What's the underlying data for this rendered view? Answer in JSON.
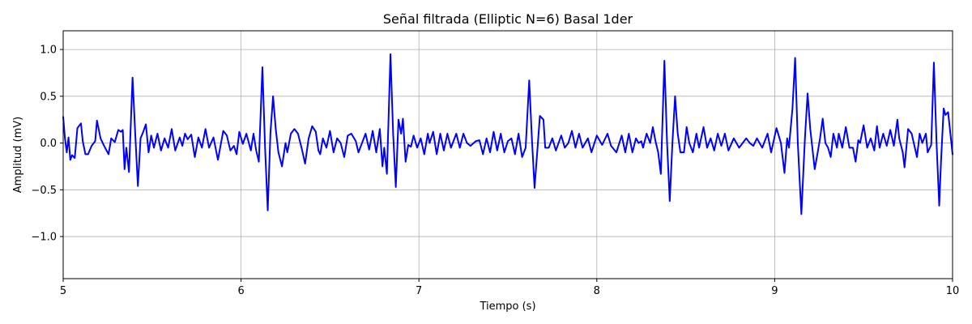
{
  "chart_data": {
    "type": "line",
    "title": "Señal filtrada (Elliptic N=6) Basal 1der",
    "xlabel": "Tiempo (s)",
    "ylabel": "Amplitud (mV)",
    "xlim": [
      5,
      10
    ],
    "ylim": [
      -1.45,
      1.2
    ],
    "xticks": [
      5,
      6,
      7,
      8,
      9,
      10
    ],
    "xtick_labels": [
      "5",
      "6",
      "7",
      "8",
      "9",
      "10"
    ],
    "yticks": [
      -1.0,
      -0.5,
      0.0,
      0.5,
      1.0
    ],
    "ytick_labels": [
      "−1.0",
      "−0.5",
      "0.0",
      "0.5",
      "1.0"
    ],
    "grid": true,
    "line_color": "#0000ff",
    "series": [
      {
        "values": [
          [
            5.0,
            0.28
          ],
          [
            5.01,
            0.05
          ],
          [
            5.02,
            -0.1
          ],
          [
            5.03,
            0.06
          ],
          [
            5.04,
            -0.18
          ],
          [
            5.05,
            -0.13
          ],
          [
            5.065,
            -0.16
          ],
          [
            5.08,
            0.16
          ],
          [
            5.1,
            0.21
          ],
          [
            5.11,
            0.02
          ],
          [
            5.125,
            -0.12
          ],
          [
            5.14,
            -0.12
          ],
          [
            5.16,
            -0.03
          ],
          [
            5.18,
            0.02
          ],
          [
            5.19,
            0.24
          ],
          [
            5.21,
            0.05
          ],
          [
            5.23,
            -0.03
          ],
          [
            5.255,
            -0.12
          ],
          [
            5.27,
            0.05
          ],
          [
            5.29,
            0.01
          ],
          [
            5.31,
            0.14
          ],
          [
            5.325,
            0.12
          ],
          [
            5.335,
            0.14
          ],
          [
            5.345,
            -0.28
          ],
          [
            5.355,
            -0.05
          ],
          [
            5.37,
            -0.31
          ],
          [
            5.39,
            0.7
          ],
          [
            5.405,
            0.1
          ],
          [
            5.42,
            -0.46
          ],
          [
            5.435,
            0.05
          ],
          [
            5.45,
            0.12
          ],
          [
            5.465,
            0.2
          ],
          [
            5.48,
            -0.1
          ],
          [
            5.495,
            0.08
          ],
          [
            5.51,
            -0.05
          ],
          [
            5.53,
            0.1
          ],
          [
            5.55,
            -0.08
          ],
          [
            5.57,
            0.05
          ],
          [
            5.59,
            -0.05
          ],
          [
            5.61,
            0.15
          ],
          [
            5.63,
            -0.08
          ],
          [
            5.655,
            0.06
          ],
          [
            5.67,
            -0.03
          ],
          [
            5.685,
            0.1
          ],
          [
            5.7,
            0.04
          ],
          [
            5.72,
            0.09
          ],
          [
            5.74,
            -0.15
          ],
          [
            5.76,
            0.06
          ],
          [
            5.78,
            -0.05
          ],
          [
            5.8,
            0.15
          ],
          [
            5.82,
            -0.05
          ],
          [
            5.845,
            0.06
          ],
          [
            5.87,
            -0.18
          ],
          [
            5.9,
            0.13
          ],
          [
            5.92,
            0.08
          ],
          [
            5.94,
            -0.08
          ],
          [
            5.96,
            -0.03
          ],
          [
            5.975,
            -0.12
          ],
          [
            5.99,
            0.12
          ],
          [
            6.01,
            -0.01
          ],
          [
            6.03,
            0.1
          ],
          [
            6.055,
            -0.08
          ],
          [
            6.07,
            0.1
          ],
          [
            6.085,
            -0.08
          ],
          [
            6.1,
            -0.2
          ],
          [
            6.12,
            0.81
          ],
          [
            6.135,
            -0.05
          ],
          [
            6.15,
            -0.72
          ],
          [
            6.165,
            0.1
          ],
          [
            6.18,
            0.5
          ],
          [
            6.195,
            0.15
          ],
          [
            6.21,
            -0.1
          ],
          [
            6.23,
            -0.25
          ],
          [
            6.25,
            0.0
          ],
          [
            6.26,
            -0.1
          ],
          [
            6.28,
            0.1
          ],
          [
            6.3,
            0.15
          ],
          [
            6.32,
            0.1
          ],
          [
            6.34,
            -0.05
          ],
          [
            6.36,
            -0.22
          ],
          [
            6.38,
            0.05
          ],
          [
            6.4,
            0.18
          ],
          [
            6.42,
            0.12
          ],
          [
            6.435,
            -0.08
          ],
          [
            6.445,
            -0.12
          ],
          [
            6.46,
            0.05
          ],
          [
            6.48,
            -0.05
          ],
          [
            6.5,
            0.13
          ],
          [
            6.52,
            -0.1
          ],
          [
            6.54,
            0.05
          ],
          [
            6.56,
            0.0
          ],
          [
            6.58,
            -0.15
          ],
          [
            6.6,
            0.08
          ],
          [
            6.62,
            0.1
          ],
          [
            6.645,
            0.02
          ],
          [
            6.66,
            -0.1
          ],
          [
            6.68,
            0.0
          ],
          [
            6.7,
            0.1
          ],
          [
            6.72,
            -0.07
          ],
          [
            6.74,
            0.13
          ],
          [
            6.76,
            -0.1
          ],
          [
            6.78,
            0.15
          ],
          [
            6.795,
            -0.25
          ],
          [
            6.805,
            -0.05
          ],
          [
            6.82,
            -0.33
          ],
          [
            6.84,
            0.95
          ],
          [
            6.855,
            0.1
          ],
          [
            6.87,
            -0.47
          ],
          [
            6.885,
            0.25
          ],
          [
            6.9,
            0.1
          ],
          [
            6.91,
            0.26
          ],
          [
            6.925,
            -0.2
          ],
          [
            6.94,
            -0.02
          ],
          [
            6.955,
            -0.04
          ],
          [
            6.97,
            0.08
          ],
          [
            6.99,
            -0.05
          ],
          [
            7.01,
            0.05
          ],
          [
            7.03,
            -0.12
          ],
          [
            7.05,
            0.1
          ],
          [
            7.06,
            0.0
          ],
          [
            7.08,
            0.12
          ],
          [
            7.1,
            -0.12
          ],
          [
            7.12,
            0.1
          ],
          [
            7.14,
            -0.08
          ],
          [
            7.16,
            0.1
          ],
          [
            7.18,
            -0.05
          ],
          [
            7.21,
            0.1
          ],
          [
            7.23,
            -0.05
          ],
          [
            7.25,
            0.1
          ],
          [
            7.27,
            0.0
          ],
          [
            7.29,
            -0.03
          ],
          [
            7.32,
            0.02
          ],
          [
            7.34,
            0.03
          ],
          [
            7.36,
            -0.12
          ],
          [
            7.38,
            0.05
          ],
          [
            7.4,
            -0.1
          ],
          [
            7.42,
            0.12
          ],
          [
            7.44,
            -0.08
          ],
          [
            7.46,
            0.1
          ],
          [
            7.48,
            -0.1
          ],
          [
            7.5,
            0.02
          ],
          [
            7.52,
            0.05
          ],
          [
            7.54,
            -0.12
          ],
          [
            7.56,
            0.1
          ],
          [
            7.58,
            -0.15
          ],
          [
            7.6,
            -0.05
          ],
          [
            7.62,
            0.67
          ],
          [
            7.635,
            0.05
          ],
          [
            7.65,
            -0.48
          ],
          [
            7.665,
            -0.1
          ],
          [
            7.68,
            0.29
          ],
          [
            7.7,
            0.25
          ],
          [
            7.71,
            -0.05
          ],
          [
            7.73,
            -0.05
          ],
          [
            7.75,
            0.05
          ],
          [
            7.77,
            -0.08
          ],
          [
            7.8,
            0.08
          ],
          [
            7.82,
            -0.05
          ],
          [
            7.84,
            0.0
          ],
          [
            7.86,
            0.13
          ],
          [
            7.88,
            -0.05
          ],
          [
            7.9,
            0.1
          ],
          [
            7.92,
            -0.05
          ],
          [
            7.95,
            0.05
          ],
          [
            7.97,
            -0.1
          ],
          [
            8.0,
            0.08
          ],
          [
            8.03,
            -0.02
          ],
          [
            8.06,
            0.1
          ],
          [
            8.08,
            -0.03
          ],
          [
            8.11,
            -0.1
          ],
          [
            8.14,
            0.08
          ],
          [
            8.16,
            -0.1
          ],
          [
            8.18,
            0.1
          ],
          [
            8.2,
            -0.1
          ],
          [
            8.22,
            0.05
          ],
          [
            8.235,
            0.0
          ],
          [
            8.25,
            0.02
          ],
          [
            8.26,
            -0.05
          ],
          [
            8.28,
            0.1
          ],
          [
            8.3,
            0.0
          ],
          [
            8.315,
            0.17
          ],
          [
            8.33,
            0.02
          ],
          [
            8.345,
            -0.1
          ],
          [
            8.36,
            -0.33
          ],
          [
            8.38,
            0.88
          ],
          [
            8.395,
            0.0
          ],
          [
            8.41,
            -0.62
          ],
          [
            8.425,
            0.0
          ],
          [
            8.44,
            0.5
          ],
          [
            8.455,
            0.1
          ],
          [
            8.47,
            -0.1
          ],
          [
            8.49,
            -0.1
          ],
          [
            8.505,
            0.17
          ],
          [
            8.52,
            0.0
          ],
          [
            8.54,
            -0.1
          ],
          [
            8.56,
            0.1
          ],
          [
            8.575,
            -0.05
          ],
          [
            8.6,
            0.17
          ],
          [
            8.62,
            -0.05
          ],
          [
            8.64,
            0.05
          ],
          [
            8.66,
            -0.08
          ],
          [
            8.68,
            0.1
          ],
          [
            8.7,
            -0.03
          ],
          [
            8.72,
            0.1
          ],
          [
            8.74,
            -0.08
          ],
          [
            8.77,
            0.05
          ],
          [
            8.8,
            -0.05
          ],
          [
            8.84,
            0.05
          ],
          [
            8.86,
            0.0
          ],
          [
            8.88,
            -0.03
          ],
          [
            8.9,
            0.05
          ],
          [
            8.93,
            -0.05
          ],
          [
            8.96,
            0.1
          ],
          [
            8.98,
            -0.1
          ],
          [
            9.01,
            0.16
          ],
          [
            9.035,
            0.0
          ],
          [
            9.055,
            -0.32
          ],
          [
            9.07,
            0.05
          ],
          [
            9.08,
            -0.05
          ],
          [
            9.1,
            0.37
          ],
          [
            9.115,
            0.91
          ],
          [
            9.13,
            0.0
          ],
          [
            9.15,
            -0.76
          ],
          [
            9.17,
            0.05
          ],
          [
            9.185,
            0.53
          ],
          [
            9.2,
            0.15
          ],
          [
            9.225,
            -0.28
          ],
          [
            9.24,
            -0.12
          ],
          [
            9.255,
            0.05
          ],
          [
            9.27,
            0.26
          ],
          [
            9.285,
            0.0
          ],
          [
            9.3,
            -0.05
          ],
          [
            9.315,
            -0.15
          ],
          [
            9.33,
            0.1
          ],
          [
            9.35,
            -0.05
          ],
          [
            9.36,
            0.1
          ],
          [
            9.38,
            -0.05
          ],
          [
            9.4,
            0.17
          ],
          [
            9.42,
            -0.05
          ],
          [
            9.44,
            -0.05
          ],
          [
            9.455,
            -0.2
          ],
          [
            9.47,
            0.03
          ],
          [
            9.48,
            0.0
          ],
          [
            9.5,
            0.19
          ],
          [
            9.52,
            -0.05
          ],
          [
            9.54,
            0.05
          ],
          [
            9.56,
            -0.08
          ],
          [
            9.575,
            0.18
          ],
          [
            9.59,
            -0.05
          ],
          [
            9.61,
            0.1
          ],
          [
            9.63,
            -0.03
          ],
          [
            9.65,
            0.14
          ],
          [
            9.67,
            -0.03
          ],
          [
            9.69,
            0.25
          ],
          [
            9.7,
            0.05
          ],
          [
            9.72,
            -0.1
          ],
          [
            9.73,
            -0.26
          ],
          [
            9.75,
            0.15
          ],
          [
            9.77,
            0.1
          ],
          [
            9.8,
            -0.15
          ],
          [
            9.815,
            0.1
          ],
          [
            9.83,
            0.0
          ],
          [
            9.85,
            0.1
          ],
          [
            9.86,
            -0.1
          ],
          [
            9.88,
            -0.02
          ],
          [
            9.895,
            0.86
          ],
          [
            9.91,
            0.0
          ],
          [
            9.925,
            -0.67
          ],
          [
            9.935,
            -0.2
          ],
          [
            9.95,
            0.37
          ],
          [
            9.96,
            0.3
          ],
          [
            9.975,
            0.33
          ],
          [
            9.985,
            0.15
          ],
          [
            10.0,
            -0.12
          ]
        ]
      }
    ]
  }
}
